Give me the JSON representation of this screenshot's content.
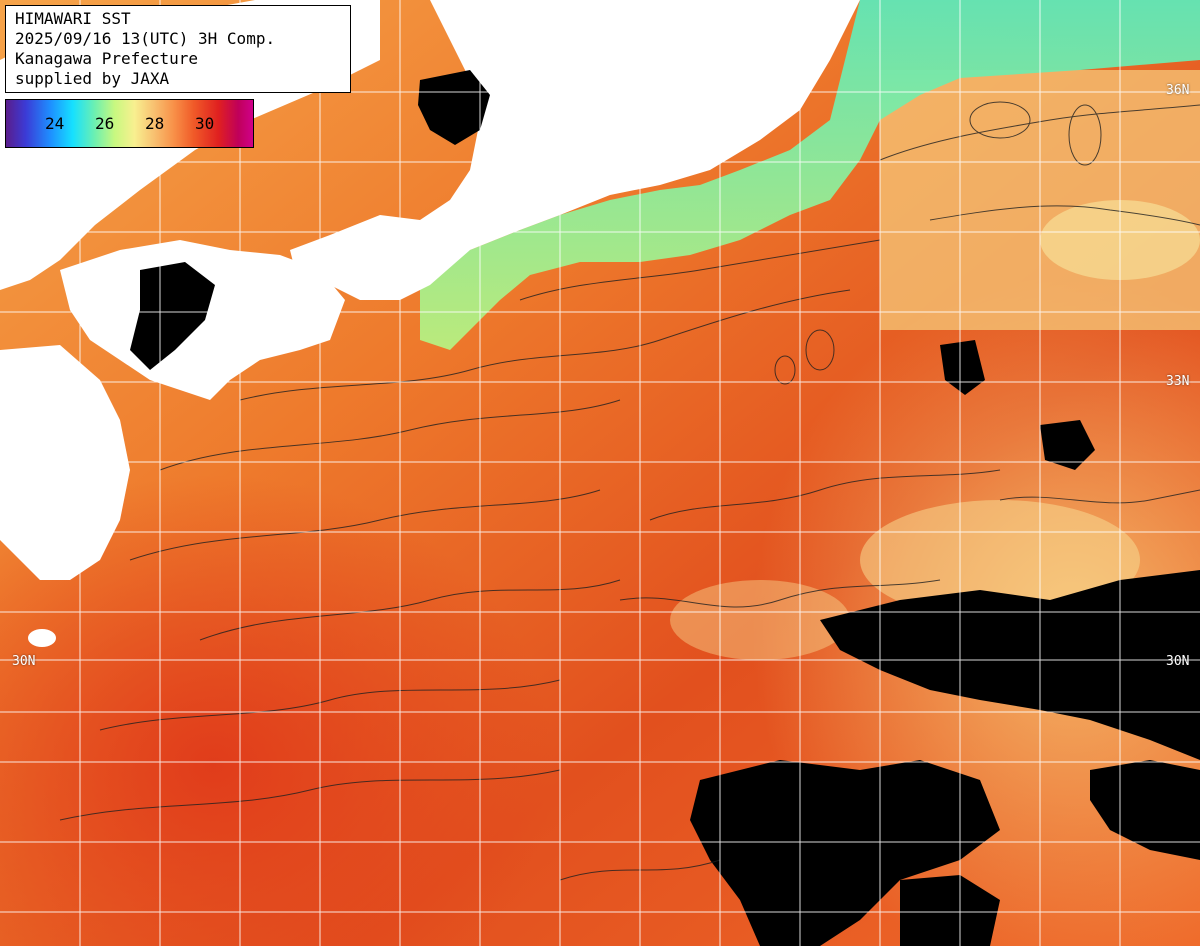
{
  "header": {
    "line1": "HIMAWARI SST",
    "line2": "2025/09/16 13(UTC) 3H Comp.",
    "line3": "Kanagawa Prefecture",
    "line4": "supplied by JAXA"
  },
  "legend": {
    "ticks": [
      "24",
      "26",
      "28",
      "30"
    ],
    "unit_colors": {
      "cold": "#3b3bd6",
      "cool": "#16e0ff",
      "mild": "#c8f880",
      "warm": "#f8c070",
      "hot": "#e02020",
      "hottest": "#c0005a"
    }
  },
  "lat_labels": {
    "n36": "36N",
    "n33": "33N",
    "n30_left": "30N",
    "n30_right": "30N"
  },
  "colors": {
    "land": "#ffffff",
    "cloud": "#000000",
    "gridline": "#ffffff",
    "contour": "#202020"
  }
}
